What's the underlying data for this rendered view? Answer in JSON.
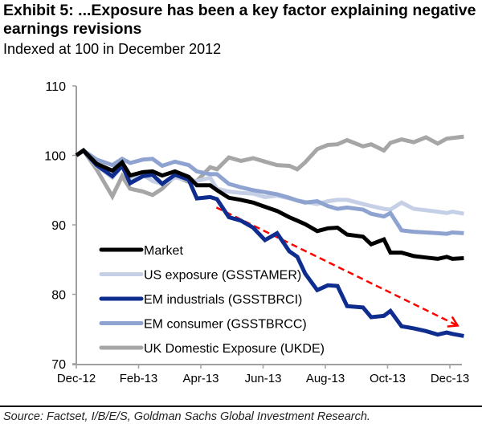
{
  "header": {
    "title": "Exhibit 5: ...Exposure has been a key factor explaining negative earnings revisions",
    "subtitle": "Indexed at 100 in December 2012"
  },
  "footer": {
    "source": "Source: Factset, I/B/E/S, Goldman Sachs Global Investment Research."
  },
  "chart_data": {
    "type": "line",
    "title": "Exhibit 5: ...Exposure has been a key factor explaining negative earnings revisions",
    "subtitle": "Indexed at 100 in December 2012",
    "xlabel": "",
    "ylabel": "",
    "x_unit": "months since Dec-12",
    "xlim": [
      0,
      12.5
    ],
    "ylim": [
      70,
      110
    ],
    "yticks": [
      70,
      80,
      90,
      100,
      110
    ],
    "xticks": [
      {
        "label": "Dec-12",
        "x": 0
      },
      {
        "label": "Feb-13",
        "x": 2
      },
      {
        "label": "Apr-13",
        "x": 4
      },
      {
        "label": "Jun-13",
        "x": 6
      },
      {
        "label": "Aug-13",
        "x": 8
      },
      {
        "label": "Oct-13",
        "x": 10
      },
      {
        "label": "Dec-13",
        "x": 12
      }
    ],
    "grid": false,
    "legend": {
      "placement": "bottom-left-inside"
    },
    "annotations": [
      {
        "type": "arrow",
        "style": "dashed",
        "color": "#ff0000",
        "from": {
          "x": 4.5,
          "y": 92.5
        },
        "to": {
          "x": 12.25,
          "y": 75.5
        },
        "label": ""
      }
    ],
    "series": [
      {
        "name": "Market",
        "color": "#000000",
        "x": [
          0,
          0.23,
          0.65,
          1.16,
          1.47,
          1.73,
          2.14,
          2.45,
          2.76,
          3.17,
          3.61,
          3.87,
          4.3,
          4.52,
          4.9,
          5.29,
          5.68,
          6.06,
          6.45,
          6.84,
          7.1,
          7.35,
          7.74,
          8.08,
          8.39,
          8.7,
          9.21,
          9.47,
          9.88,
          10.09,
          10.45,
          10.84,
          11.23,
          11.61,
          11.9,
          12.08,
          12.45
        ],
        "values": [
          100,
          100.7,
          98.8,
          97.8,
          99,
          97.1,
          97.6,
          97.7,
          97.1,
          97.7,
          96.9,
          95.7,
          95.7,
          95.0,
          93.9,
          93.6,
          93.2,
          92.6,
          92.0,
          91.1,
          90.6,
          90.1,
          89.1,
          89.5,
          89.6,
          88.6,
          88.3,
          87.2,
          87.9,
          86.0,
          86.0,
          85.5,
          85.3,
          85.1,
          85.4,
          85.1,
          85.2
        ]
      },
      {
        "name": "US exposure (GSSTAMER)",
        "color": "#c5cfe5",
        "x": [
          0,
          0.23,
          0.65,
          1.16,
          1.47,
          1.73,
          2.14,
          2.45,
          2.76,
          3.17,
          3.61,
          3.87,
          4.3,
          4.52,
          4.9,
          5.29,
          5.68,
          6.06,
          6.45,
          6.84,
          7.1,
          7.35,
          7.74,
          8.08,
          8.39,
          8.7,
          9.21,
          9.47,
          9.88,
          10.09,
          10.45,
          10.84,
          11.23,
          11.61,
          11.9,
          12.08,
          12.45
        ],
        "values": [
          100,
          100.7,
          98.5,
          96.8,
          98.5,
          96.6,
          97.2,
          96.3,
          95.9,
          96.8,
          96.5,
          96.3,
          96.8,
          95.2,
          94.8,
          94.6,
          94.5,
          94.0,
          94.2,
          93.8,
          93.5,
          93.3,
          93.0,
          93.4,
          93.6,
          93.6,
          93.0,
          92.7,
          92.3,
          92.2,
          93.2,
          92.3,
          92.1,
          91.9,
          91.7,
          91.9,
          91.6
        ]
      },
      {
        "name": "EM industrials (GSSTBRCI)",
        "color": "#0e2d8e",
        "x": [
          0,
          0.23,
          0.65,
          1.16,
          1.47,
          1.73,
          2.14,
          2.45,
          2.76,
          3.17,
          3.61,
          3.87,
          4.3,
          4.52,
          4.9,
          5.29,
          5.68,
          6.06,
          6.45,
          6.84,
          7.1,
          7.35,
          7.74,
          8.08,
          8.39,
          8.7,
          9.21,
          9.47,
          9.88,
          10.09,
          10.45,
          10.84,
          11.23,
          11.61,
          11.9,
          12.08,
          12.45
        ],
        "values": [
          100,
          100.7,
          98.6,
          97.0,
          98.5,
          96.0,
          97.0,
          97.2,
          95.9,
          97.2,
          96.5,
          93.8,
          94.0,
          93.7,
          91.1,
          90.6,
          89.6,
          87.8,
          88.8,
          86.2,
          85.4,
          83.0,
          80.6,
          81.3,
          81.2,
          78.3,
          78.1,
          76.7,
          76.9,
          77.6,
          75.4,
          75.1,
          74.7,
          74.2,
          74.5,
          74.3,
          74.0
        ]
      },
      {
        "name": "EM consumer (GSSTBRCC)",
        "color": "#8fa3d1",
        "x": [
          0,
          0.23,
          0.65,
          1.16,
          1.47,
          1.73,
          2.14,
          2.45,
          2.76,
          3.17,
          3.61,
          3.87,
          4.3,
          4.52,
          4.9,
          5.29,
          5.68,
          6.06,
          6.45,
          6.84,
          7.1,
          7.35,
          7.74,
          8.08,
          8.39,
          8.7,
          9.21,
          9.47,
          9.88,
          10.09,
          10.45,
          10.84,
          11.23,
          11.61,
          11.9,
          12.08,
          12.45
        ],
        "values": [
          100,
          100.7,
          99.4,
          98.6,
          99.5,
          98.9,
          99.4,
          99.5,
          98.5,
          99.1,
          98.6,
          97.7,
          97.3,
          97.3,
          95.9,
          95.4,
          95.0,
          94.7,
          94.4,
          93.9,
          93.5,
          93.2,
          93.4,
          92.7,
          92.3,
          92.5,
          92.2,
          91.6,
          91.2,
          91.7,
          89.2,
          89.0,
          88.9,
          88.8,
          88.7,
          88.9,
          88.8
        ]
      },
      {
        "name": "UK Domestic Exposure (UKDE)",
        "color": "#a6a6a6",
        "x": [
          0,
          0.23,
          0.65,
          1.16,
          1.47,
          1.73,
          2.14,
          2.45,
          2.76,
          3.17,
          3.61,
          3.87,
          4.3,
          4.52,
          4.9,
          5.29,
          5.68,
          6.06,
          6.45,
          6.84,
          7.1,
          7.35,
          7.74,
          8.08,
          8.39,
          8.7,
          9.21,
          9.47,
          9.88,
          10.09,
          10.45,
          10.84,
          11.23,
          11.61,
          11.9,
          12.08,
          12.45
        ],
        "values": [
          100,
          100.7,
          98.0,
          94.1,
          97.0,
          95.2,
          94.8,
          94.3,
          95.2,
          97.0,
          96.2,
          96.3,
          98.3,
          98.0,
          99.7,
          99.2,
          99.6,
          99.1,
          98.6,
          98.5,
          98.0,
          99.0,
          100.9,
          101.5,
          101.6,
          102.2,
          101.3,
          101.6,
          100.7,
          101.8,
          102.3,
          101.9,
          102.6,
          101.7,
          102.4,
          102.5,
          102.7
        ]
      }
    ]
  }
}
